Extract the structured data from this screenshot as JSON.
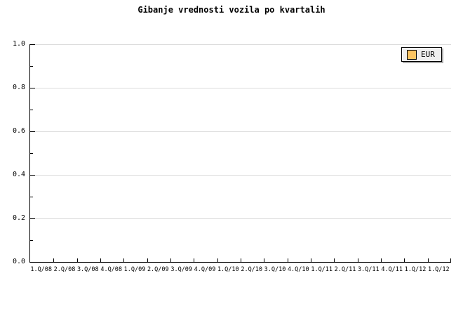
{
  "title": "Gibanje vrednosti vozila po kvartalih",
  "legend": {
    "position": "top-right",
    "items": [
      {
        "label": "EUR",
        "swatch_color": "#FBC563"
      }
    ]
  },
  "colors": {
    "background": "#FFFFFF",
    "text": "#000000",
    "axis": "#000000",
    "gridline": "#DCDCDC",
    "legend_background": "#EFEFEF",
    "legend_border": "#000000",
    "legend_shadow": "#A9A9A9",
    "series_eur": "#FBC563"
  },
  "chart_data": {
    "type": "line",
    "title": "Gibanje vrednosti vozila po kvartalih",
    "xlabel": "",
    "ylabel": "",
    "categories": [
      "1.Q/08",
      "2.Q/08",
      "3.Q/08",
      "4.Q/08",
      "1.Q/09",
      "2.Q/09",
      "3.Q/09",
      "4.Q/09",
      "1.Q/10",
      "2.Q/10",
      "3.Q/10",
      "4.Q/10",
      "1.Q/11",
      "2.Q/11",
      "3.Q/11",
      "4.Q/11",
      "1.Q/12",
      "1.Q/12"
    ],
    "series": [
      {
        "name": "EUR",
        "color": "#FBC563",
        "values": []
      }
    ],
    "ylim": [
      0.0,
      1.0
    ],
    "ytick_labels": [
      "0.0",
      "0.2",
      "0.4",
      "0.6",
      "0.8",
      "1.0"
    ],
    "ytick_step": 0.2,
    "y_minor_tick_step": 0.1,
    "grid": "horizontal-major-only",
    "legend_position": "top-right",
    "plot_is_empty": true
  }
}
